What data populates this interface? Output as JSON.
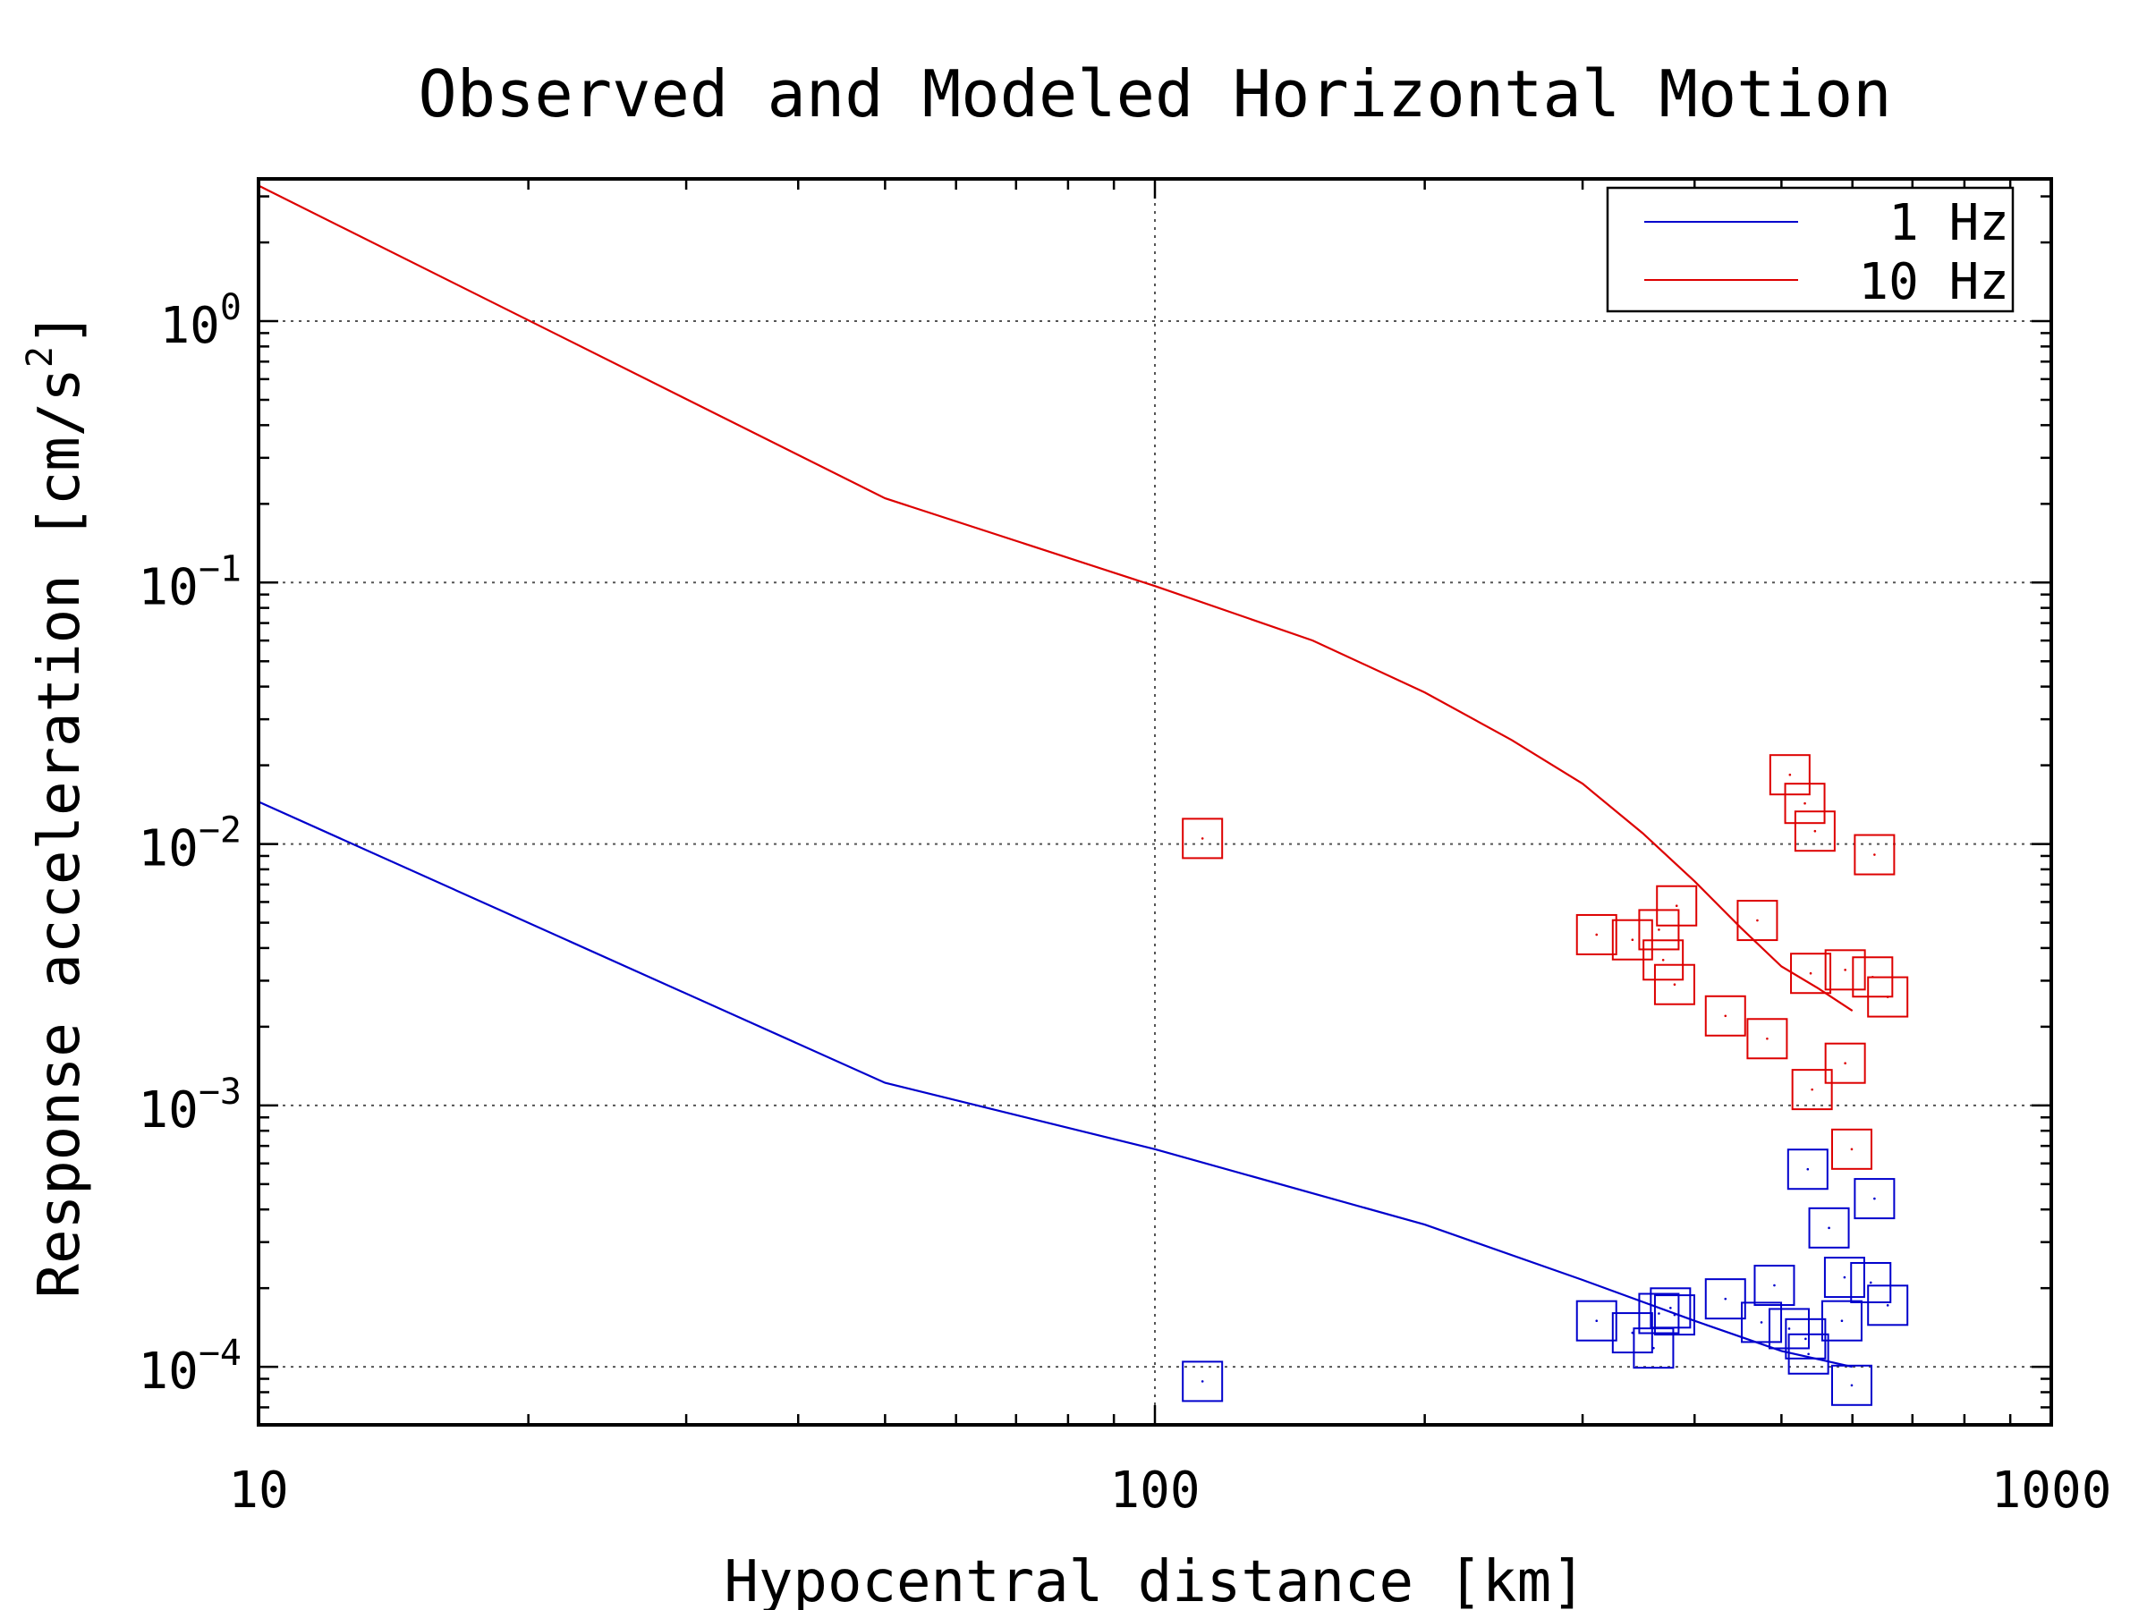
{
  "chart_data": {
    "type": "scatter",
    "title": "Observed and Modeled Horizontal Motion",
    "xlabel": "Hypocentral distance [km]",
    "ylabel": "Response acceleration [cm/s",
    "ylabel_exponent": "2",
    "ylabel_suffix": "]",
    "xscale": "log",
    "yscale": "log",
    "xlim": [
      10,
      1000
    ],
    "ylim": [
      6e-05,
      3.5
    ],
    "x_ticks": [
      {
        "value": 10,
        "label": "10"
      },
      {
        "value": 100,
        "label": "100"
      },
      {
        "value": 1000,
        "label": "1000"
      }
    ],
    "y_ticks": [
      {
        "value": 0.0001,
        "base": "10",
        "exp": "−4"
      },
      {
        "value": 0.001,
        "base": "10",
        "exp": "−3"
      },
      {
        "value": 0.01,
        "base": "10",
        "exp": "−2"
      },
      {
        "value": 0.1,
        "base": "10",
        "exp": "−1"
      },
      {
        "value": 1,
        "base": "10",
        "exp": "0"
      }
    ],
    "grid": true,
    "legend": {
      "position": "top-right",
      "entries": [
        {
          "label": "1 Hz",
          "color": "#0000cc"
        },
        {
          "label": "10 Hz",
          "color": "#dd0000"
        }
      ]
    },
    "model_lines": [
      {
        "name": "1 Hz",
        "color": "#0000cc",
        "x": [
          10,
          50,
          100,
          200,
          300,
          400,
          500,
          600
        ],
        "y": [
          0.0145,
          0.00122,
          0.00068,
          0.00035,
          0.000215,
          0.00015,
          0.000115,
          0.0001
        ]
      },
      {
        "name": "10 Hz",
        "color": "#dd0000",
        "x": [
          10,
          50,
          100,
          150,
          200,
          250,
          300,
          350,
          400,
          450,
          500,
          550,
          600
        ],
        "y": [
          3.3,
          0.21,
          0.097,
          0.06,
          0.038,
          0.025,
          0.017,
          0.011,
          0.0072,
          0.0048,
          0.0034,
          0.0028,
          0.0023
        ]
      }
    ],
    "observed": [
      {
        "name": "1 Hz",
        "color": "#0000cc",
        "points": [
          {
            "x": 113,
            "y": 8.8e-05
          },
          {
            "x": 311,
            "y": 0.00015
          },
          {
            "x": 341,
            "y": 0.000135
          },
          {
            "x": 360,
            "y": 0.000118
          },
          {
            "x": 365,
            "y": 0.00016
          },
          {
            "x": 376,
            "y": 0.000168
          },
          {
            "x": 380,
            "y": 0.000158
          },
          {
            "x": 433,
            "y": 0.000182
          },
          {
            "x": 475,
            "y": 0.000148
          },
          {
            "x": 491,
            "y": 0.000205
          },
          {
            "x": 510,
            "y": 0.00014
          },
          {
            "x": 532,
            "y": 0.000128
          },
          {
            "x": 536,
            "y": 0.000112
          },
          {
            "x": 535,
            "y": 0.00057
          },
          {
            "x": 565,
            "y": 0.00034
          },
          {
            "x": 588,
            "y": 0.00022
          },
          {
            "x": 584,
            "y": 0.00015
          },
          {
            "x": 599,
            "y": 8.5e-05
          },
          {
            "x": 629,
            "y": 0.00021
          },
          {
            "x": 635,
            "y": 0.00044
          },
          {
            "x": 657,
            "y": 0.000172
          }
        ]
      },
      {
        "name": "10 Hz",
        "color": "#dd0000",
        "points": [
          {
            "x": 113,
            "y": 0.0105
          },
          {
            "x": 311,
            "y": 0.0045
          },
          {
            "x": 341,
            "y": 0.0043
          },
          {
            "x": 365,
            "y": 0.0047
          },
          {
            "x": 369,
            "y": 0.0036
          },
          {
            "x": 380,
            "y": 0.0029
          },
          {
            "x": 382,
            "y": 0.0058
          },
          {
            "x": 433,
            "y": 0.0022
          },
          {
            "x": 470,
            "y": 0.0051
          },
          {
            "x": 482,
            "y": 0.0018
          },
          {
            "x": 511,
            "y": 0.0184
          },
          {
            "x": 531,
            "y": 0.0143
          },
          {
            "x": 545,
            "y": 0.0112
          },
          {
            "x": 539,
            "y": 0.0032
          },
          {
            "x": 541,
            "y": 0.00115
          },
          {
            "x": 589,
            "y": 0.0033
          },
          {
            "x": 589,
            "y": 0.00145
          },
          {
            "x": 599,
            "y": 0.00068
          },
          {
            "x": 632,
            "y": 0.0031
          },
          {
            "x": 635,
            "y": 0.0091
          },
          {
            "x": 657,
            "y": 0.0026
          }
        ]
      }
    ]
  }
}
